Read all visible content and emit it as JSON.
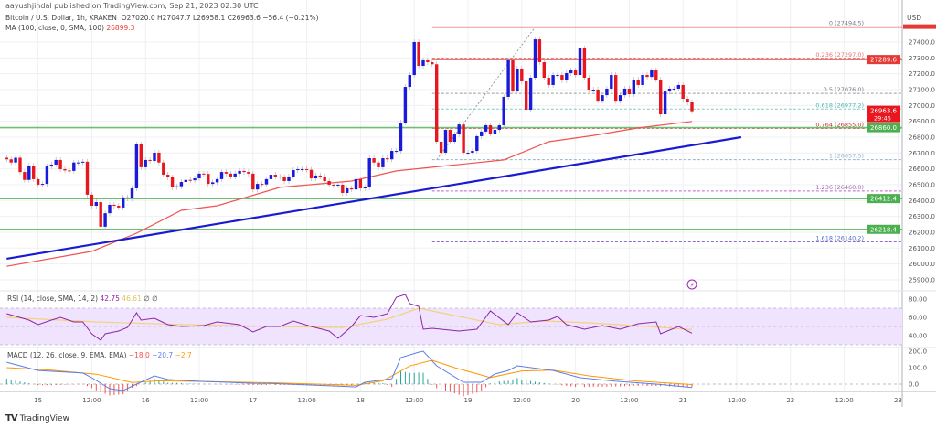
{
  "header": {
    "published": "aayushjindal published on TradingView.com, Sep 21, 2023 02:30 UTC",
    "symbol": "Bitcoin / U.S. Dollar, 1h, KRAKEN",
    "ohlc": "O27020.0  H27047.7  L26958.1  C26963.6  −56.4 (−0.21%)",
    "ma_label": "MA (100, close, 0, SMA, 100)",
    "ma_value": "26899.3"
  },
  "currency": "USD",
  "brand": "TradingView",
  "colors": {
    "up": "#1a1adb",
    "down": "#e8161e",
    "ma": "#ef5350",
    "trendline": "#1a1ad0",
    "support": "#4caf50",
    "resistance": "#e53935",
    "rsi": "#8e24aa",
    "rsi_ma": "#f3d27a",
    "rsi_band": "#f0e3fd",
    "macd": "#5b7ee8",
    "signal": "#ff9800",
    "hist_up": "#26a69a",
    "hist_down": "#ef5350"
  },
  "chart_data": {
    "type": "candlestick",
    "interval": "1h",
    "first_candle": "Sep 14 17:00",
    "last_candle": "Sep 21 02:00",
    "closes": [
      26660,
      26640,
      26670,
      26580,
      26530,
      26620,
      26535,
      26500,
      26505,
      26615,
      26627,
      26656,
      26598,
      26590,
      26587,
      26640,
      26640,
      26645,
      26437,
      26367,
      26390,
      26235,
      26320,
      26373,
      26367,
      26356,
      26420,
      26413,
      26477,
      26754,
      26610,
      26656,
      26650,
      26702,
      26640,
      26563,
      26546,
      26483,
      26490,
      26517,
      26530,
      26528,
      26540,
      26570,
      26568,
      26505,
      26515,
      26535,
      26580,
      26570,
      26552,
      26570,
      26587,
      26580,
      26570,
      26470,
      26505,
      26502,
      26535,
      26563,
      26552,
      26548,
      26523,
      26552,
      26592,
      26598,
      26598,
      26594,
      26540,
      26558,
      26552,
      26523,
      26500,
      26494,
      26500,
      26448,
      26477,
      26470,
      26535,
      26477,
      26483,
      26667,
      26640,
      26610,
      26667,
      26660,
      26713,
      26713,
      26892,
      27117,
      27192,
      27400,
      27250,
      27285,
      27273,
      27260,
      26771,
      26702,
      26846,
      26771,
      26817,
      26880,
      26702,
      26702,
      26713,
      26806,
      26835,
      26875,
      26823,
      26846,
      26875,
      27054,
      27285,
      27094,
      27233,
      27152,
      26973,
      27175,
      27417,
      27273,
      27175,
      27129,
      27192,
      27192,
      27158,
      27204,
      27221,
      27192,
      27360,
      27175,
      27100,
      27100,
      27030,
      27065,
      27106,
      27192,
      27030,
      27065,
      27106,
      27071,
      27163,
      27129,
      27192,
      27180,
      27221,
      27163,
      26944,
      27088,
      27106,
      27106,
      27129,
      27042,
      27019,
      26963.6
    ],
    "ma100": [
      [
        0,
        25985
      ],
      [
        19,
        26079
      ],
      [
        29,
        26194
      ],
      [
        39,
        26338
      ],
      [
        47,
        26367
      ],
      [
        61,
        26483
      ],
      [
        77,
        26523
      ],
      [
        87,
        26587
      ],
      [
        95,
        26610
      ],
      [
        111,
        26656
      ],
      [
        121,
        26771
      ],
      [
        131,
        26811
      ],
      [
        141,
        26858
      ],
      [
        153,
        26899.3
      ]
    ],
    "trendline": [
      [
        0,
        26033
      ],
      [
        164,
        26800
      ]
    ],
    "horizontal_levels": [
      {
        "price": 26860.0,
        "label": "26860.0",
        "kind": "support"
      },
      {
        "price": 26412.4,
        "label": "26412.4",
        "kind": "support"
      },
      {
        "price": 26218.4,
        "label": "26218.4",
        "kind": "support"
      },
      {
        "price": 27289.6,
        "label": "27289.6",
        "kind": "resistance"
      }
    ],
    "last_price": {
      "label": "26963.6",
      "countdown": "29:46"
    },
    "fib": {
      "from": [
        96,
        26657.5
      ],
      "to": [
        118,
        27494.5
      ],
      "levels": [
        {
          "text": "0 (27494.5)",
          "price": 27494.5,
          "color": "#e53935",
          "label_color": "#787b86"
        },
        {
          "text": "0.236 (27297.0)",
          "price": 27297.0,
          "color": "#e53935",
          "label_color": "#e57373"
        },
        {
          "text": "0.5 (27076.0)",
          "price": 27076.0,
          "color": "#9e9e9e",
          "label_color": "#787b86"
        },
        {
          "text": "0.618 (26977.2)",
          "price": 26977.2,
          "color": "#80cbc4",
          "label_color": "#4db6ac"
        },
        {
          "text": "0.764 (26855.0)",
          "price": 26855.0,
          "color": "#e57373",
          "label_color": "#c62828"
        },
        {
          "text": "1 (26657.5)",
          "price": 26657.5,
          "color": "#90b4d0",
          "label_color": "#90b4d0"
        },
        {
          "text": "1.236 (26460.0)",
          "price": 26460.0,
          "color": "#ba68c8",
          "label_color": "#9c6fb0"
        },
        {
          "text": "1.618 (26140.2)",
          "price": 26140.2,
          "color": "#7e57c2",
          "label_color": "#5c6bc0"
        }
      ]
    },
    "price_ticks": [
      "27400.0",
      "27300.0",
      "27200.0",
      "27100.0",
      "27000.0",
      "26900.0",
      "26800.0",
      "26700.0",
      "26600.0",
      "26500.0",
      "26400.0",
      "26300.0",
      "26200.0",
      "26100.0",
      "26000.0",
      "25900.0"
    ],
    "price_range": [
      25850,
      27560
    ],
    "time_ticks": [
      "15",
      "12:00",
      "16",
      "12:00",
      "17",
      "12:00",
      "18",
      "12:00",
      "19",
      "12:00",
      "20",
      "12:00",
      "21",
      "12:00",
      "22",
      "12:00",
      "23"
    ],
    "rsi": {
      "label": "RSI (14, close, SMA, 14, 2)",
      "value": "42.75",
      "ma_value": "46.61",
      "extra": "∅  ∅",
      "ticks": [
        "80.00",
        "60.00",
        "40.00"
      ],
      "band": [
        30,
        70
      ],
      "line": [
        [
          0,
          64
        ],
        [
          5,
          57
        ],
        [
          7,
          52
        ],
        [
          10,
          57
        ],
        [
          12,
          60
        ],
        [
          15,
          55
        ],
        [
          17,
          55
        ],
        [
          19,
          42
        ],
        [
          21,
          35
        ],
        [
          22,
          42
        ],
        [
          25,
          45
        ],
        [
          27,
          49
        ],
        [
          29,
          65
        ],
        [
          30,
          57
        ],
        [
          33,
          59
        ],
        [
          36,
          52
        ],
        [
          39,
          50
        ],
        [
          44,
          51
        ],
        [
          47,
          55
        ],
        [
          52,
          52
        ],
        [
          55,
          44
        ],
        [
          58,
          50
        ],
        [
          61,
          50
        ],
        [
          64,
          56
        ],
        [
          68,
          50
        ],
        [
          72,
          45
        ],
        [
          74,
          37
        ],
        [
          77,
          50
        ],
        [
          79,
          62
        ],
        [
          82,
          60
        ],
        [
          85,
          64
        ],
        [
          87,
          82
        ],
        [
          89,
          85
        ],
        [
          90,
          75
        ],
        [
          92,
          72
        ],
        [
          93,
          47
        ],
        [
          95,
          48
        ],
        [
          101,
          45
        ],
        [
          105,
          47
        ],
        [
          108,
          67
        ],
        [
          112,
          52
        ],
        [
          114,
          65
        ],
        [
          117,
          55
        ],
        [
          121,
          57
        ],
        [
          123,
          61
        ],
        [
          125,
          52
        ],
        [
          129,
          47
        ],
        [
          133,
          51
        ],
        [
          137,
          47
        ],
        [
          141,
          53
        ],
        [
          145,
          55
        ],
        [
          146,
          42
        ],
        [
          150,
          50
        ],
        [
          153,
          42.75
        ]
      ],
      "ma": [
        [
          0,
          60
        ],
        [
          20,
          55
        ],
        [
          40,
          52
        ],
        [
          60,
          50
        ],
        [
          75,
          49
        ],
        [
          85,
          58
        ],
        [
          92,
          70
        ],
        [
          100,
          62
        ],
        [
          110,
          52
        ],
        [
          120,
          56
        ],
        [
          130,
          54
        ],
        [
          140,
          51
        ],
        [
          153,
          46.61
        ]
      ]
    },
    "macd": {
      "label": "MACD (12, 26, close, 9, EMA, EMA)",
      "hist_value": "−18.0",
      "macd_value": "−20.7",
      "signal_value": "−2.7",
      "ticks": [
        "200.0",
        "100.0",
        "0.0"
      ],
      "line": [
        [
          0,
          133
        ],
        [
          7,
          83
        ],
        [
          17,
          67
        ],
        [
          19,
          39
        ],
        [
          23,
          -28
        ],
        [
          26,
          -39
        ],
        [
          29,
          0
        ],
        [
          33,
          50
        ],
        [
          36,
          28
        ],
        [
          43,
          17
        ],
        [
          55,
          5
        ],
        [
          59,
          4
        ],
        [
          78,
          -17
        ],
        [
          80,
          11
        ],
        [
          86,
          33
        ],
        [
          88,
          161
        ],
        [
          92,
          194
        ],
        [
          93,
          200
        ],
        [
          96,
          111
        ],
        [
          102,
          11
        ],
        [
          106,
          11
        ],
        [
          109,
          61
        ],
        [
          112,
          83
        ],
        [
          114,
          111
        ],
        [
          122,
          83
        ],
        [
          128,
          39
        ],
        [
          136,
          17
        ],
        [
          145,
          0
        ],
        [
          153,
          -20.7
        ]
      ],
      "signal": [
        [
          0,
          100
        ],
        [
          10,
          85
        ],
        [
          20,
          60
        ],
        [
          28,
          10
        ],
        [
          34,
          20
        ],
        [
          45,
          15
        ],
        [
          60,
          8
        ],
        [
          78,
          -8
        ],
        [
          84,
          20
        ],
        [
          90,
          110
        ],
        [
          95,
          145
        ],
        [
          100,
          100
        ],
        [
          108,
          40
        ],
        [
          115,
          80
        ],
        [
          122,
          85
        ],
        [
          130,
          50
        ],
        [
          140,
          20
        ],
        [
          153,
          -2.7
        ]
      ]
    }
  }
}
